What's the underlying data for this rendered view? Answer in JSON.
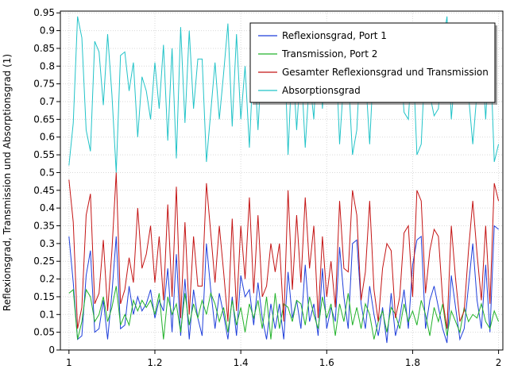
{
  "chart_data": {
    "type": "line",
    "title": "",
    "xlabel": "",
    "ylabel": "Reflexionsgrad, Transmission und Absorptionsgrad (1)",
    "xlim": [
      0.98,
      2.01
    ],
    "ylim": [
      0,
      0.955
    ],
    "x_ticks": [
      1,
      1.2,
      1.4,
      1.6,
      1.8,
      2
    ],
    "x_tick_labels": [
      "1",
      "1.2",
      "1.4",
      "1.6",
      "1.8",
      "2"
    ],
    "y_ticks": [
      0,
      0.05,
      0.1,
      0.15,
      0.2,
      0.25,
      0.3,
      0.35,
      0.4,
      0.45,
      0.5,
      0.55,
      0.6,
      0.65,
      0.7,
      0.75,
      0.8,
      0.85,
      0.9,
      0.95
    ],
    "y_tick_labels": [
      "0",
      "0.05",
      "0.1",
      "0.15",
      "0.2",
      "0.25",
      "0.3",
      "0.35",
      "0.4",
      "0.45",
      "0.5",
      "0.55",
      "0.6",
      "0.65",
      "0.7",
      "0.75",
      "0.8",
      "0.85",
      "0.9",
      "0.95"
    ],
    "grid": true,
    "legend_position": "top-right",
    "x": [
      1.0,
      1.01,
      1.02,
      1.03,
      1.04,
      1.05,
      1.06,
      1.07,
      1.08,
      1.09,
      1.1,
      1.11,
      1.12,
      1.13,
      1.14,
      1.15,
      1.16,
      1.17,
      1.18,
      1.19,
      1.2,
      1.21,
      1.22,
      1.23,
      1.24,
      1.25,
      1.26,
      1.27,
      1.28,
      1.29,
      1.3,
      1.31,
      1.32,
      1.33,
      1.34,
      1.35,
      1.36,
      1.37,
      1.38,
      1.39,
      1.4,
      1.41,
      1.42,
      1.43,
      1.44,
      1.45,
      1.46,
      1.47,
      1.48,
      1.49,
      1.5,
      1.51,
      1.52,
      1.53,
      1.54,
      1.55,
      1.56,
      1.57,
      1.58,
      1.59,
      1.6,
      1.61,
      1.62,
      1.63,
      1.64,
      1.65,
      1.66,
      1.67,
      1.68,
      1.69,
      1.7,
      1.71,
      1.72,
      1.73,
      1.74,
      1.75,
      1.76,
      1.77,
      1.78,
      1.79,
      1.8,
      1.81,
      1.82,
      1.83,
      1.84,
      1.85,
      1.86,
      1.87,
      1.88,
      1.89,
      1.9,
      1.91,
      1.92,
      1.93,
      1.94,
      1.95,
      1.96,
      1.97,
      1.98,
      1.99,
      2.0
    ],
    "series": [
      {
        "name": "Reflexionsgrad, Port 1",
        "color": "#1f3fdb",
        "values": [
          0.32,
          0.19,
          0.03,
          0.04,
          0.21,
          0.28,
          0.05,
          0.06,
          0.14,
          0.03,
          0.16,
          0.32,
          0.06,
          0.07,
          0.18,
          0.1,
          0.15,
          0.11,
          0.13,
          0.17,
          0.09,
          0.14,
          0.11,
          0.23,
          0.05,
          0.27,
          0.04,
          0.2,
          0.03,
          0.17,
          0.09,
          0.04,
          0.3,
          0.17,
          0.06,
          0.16,
          0.1,
          0.03,
          0.15,
          0.04,
          0.21,
          0.15,
          0.17,
          0.07,
          0.19,
          0.09,
          0.03,
          0.13,
          0.06,
          0.13,
          0.03,
          0.22,
          0.09,
          0.14,
          0.06,
          0.24,
          0.08,
          0.13,
          0.04,
          0.23,
          0.06,
          0.12,
          0.08,
          0.29,
          0.15,
          0.06,
          0.3,
          0.31,
          0.13,
          0.06,
          0.18,
          0.1,
          0.04,
          0.12,
          0.02,
          0.16,
          0.04,
          0.09,
          0.17,
          0.06,
          0.24,
          0.31,
          0.32,
          0.06,
          0.14,
          0.18,
          0.12,
          0.06,
          0.02,
          0.21,
          0.12,
          0.03,
          0.06,
          0.18,
          0.3,
          0.14,
          0.06,
          0.24,
          0.05,
          0.35,
          0.34
        ]
      },
      {
        "name": "Transmission, Port 2",
        "color": "#22b22a",
        "values": [
          0.16,
          0.17,
          0.03,
          0.08,
          0.17,
          0.15,
          0.08,
          0.1,
          0.15,
          0.08,
          0.12,
          0.18,
          0.07,
          0.1,
          0.07,
          0.14,
          0.11,
          0.14,
          0.12,
          0.14,
          0.1,
          0.16,
          0.03,
          0.15,
          0.1,
          0.13,
          0.05,
          0.16,
          0.07,
          0.13,
          0.09,
          0.14,
          0.1,
          0.16,
          0.13,
          0.08,
          0.12,
          0.05,
          0.14,
          0.07,
          0.12,
          0.05,
          0.13,
          0.09,
          0.14,
          0.06,
          0.15,
          0.03,
          0.16,
          0.06,
          0.13,
          0.12,
          0.08,
          0.14,
          0.13,
          0.07,
          0.15,
          0.1,
          0.06,
          0.15,
          0.09,
          0.13,
          0.04,
          0.13,
          0.08,
          0.16,
          0.07,
          0.12,
          0.06,
          0.13,
          0.1,
          0.03,
          0.08,
          0.11,
          0.05,
          0.12,
          0.1,
          0.06,
          0.13,
          0.08,
          0.11,
          0.07,
          0.14,
          0.1,
          0.04,
          0.12,
          0.08,
          0.13,
          0.04,
          0.11,
          0.08,
          0.05,
          0.12,
          0.08,
          0.1,
          0.09,
          0.13,
          0.08,
          0.06,
          0.11,
          0.08
        ]
      },
      {
        "name": "Gesamter Reflexionsgrad und Transmission",
        "color": "#c41414",
        "values": [
          0.48,
          0.36,
          0.06,
          0.12,
          0.38,
          0.44,
          0.13,
          0.16,
          0.31,
          0.11,
          0.28,
          0.5,
          0.13,
          0.17,
          0.26,
          0.19,
          0.4,
          0.23,
          0.27,
          0.35,
          0.19,
          0.32,
          0.14,
          0.41,
          0.15,
          0.46,
          0.09,
          0.36,
          0.1,
          0.32,
          0.18,
          0.18,
          0.47,
          0.33,
          0.19,
          0.35,
          0.22,
          0.08,
          0.37,
          0.11,
          0.35,
          0.2,
          0.43,
          0.16,
          0.38,
          0.15,
          0.18,
          0.3,
          0.22,
          0.3,
          0.08,
          0.45,
          0.17,
          0.38,
          0.19,
          0.43,
          0.23,
          0.35,
          0.09,
          0.32,
          0.15,
          0.25,
          0.12,
          0.42,
          0.23,
          0.22,
          0.45,
          0.38,
          0.14,
          0.22,
          0.42,
          0.17,
          0.08,
          0.23,
          0.3,
          0.28,
          0.09,
          0.15,
          0.33,
          0.35,
          0.15,
          0.45,
          0.42,
          0.16,
          0.28,
          0.34,
          0.32,
          0.14,
          0.06,
          0.35,
          0.2,
          0.08,
          0.11,
          0.28,
          0.42,
          0.27,
          0.14,
          0.35,
          0.13,
          0.47,
          0.42
        ]
      },
      {
        "name": "Absorptionsgrad",
        "color": "#22c3c8",
        "values": [
          0.52,
          0.64,
          0.94,
          0.88,
          0.62,
          0.56,
          0.87,
          0.84,
          0.69,
          0.89,
          0.72,
          0.5,
          0.83,
          0.84,
          0.73,
          0.81,
          0.6,
          0.77,
          0.73,
          0.65,
          0.81,
          0.68,
          0.86,
          0.59,
          0.85,
          0.54,
          0.91,
          0.64,
          0.9,
          0.68,
          0.82,
          0.82,
          0.53,
          0.67,
          0.81,
          0.65,
          0.78,
          0.92,
          0.63,
          0.89,
          0.65,
          0.8,
          0.57,
          0.84,
          0.62,
          0.85,
          0.82,
          0.7,
          0.78,
          0.7,
          0.92,
          0.55,
          0.83,
          0.62,
          0.81,
          0.57,
          0.77,
          0.65,
          0.91,
          0.68,
          0.85,
          0.75,
          0.88,
          0.58,
          0.77,
          0.78,
          0.55,
          0.62,
          0.86,
          0.78,
          0.58,
          0.83,
          0.92,
          0.77,
          0.7,
          0.72,
          0.91,
          0.85,
          0.67,
          0.65,
          0.85,
          0.55,
          0.58,
          0.84,
          0.72,
          0.66,
          0.68,
          0.86,
          0.94,
          0.65,
          0.8,
          0.92,
          0.89,
          0.72,
          0.58,
          0.73,
          0.86,
          0.65,
          0.87,
          0.53,
          0.58
        ]
      }
    ]
  }
}
